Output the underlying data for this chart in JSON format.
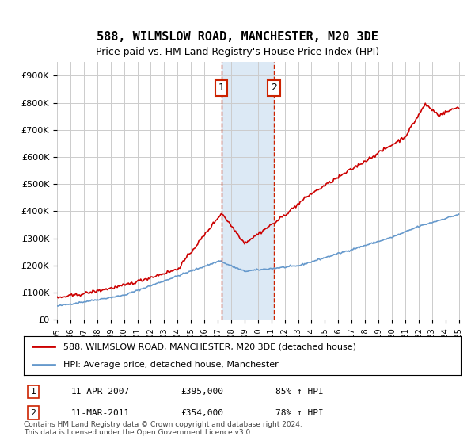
{
  "title": "588, WILMSLOW ROAD, MANCHESTER, M20 3DE",
  "subtitle": "Price paid vs. HM Land Registry's House Price Index (HPI)",
  "ylim": [
    0,
    950000
  ],
  "yticks": [
    0,
    100000,
    200000,
    300000,
    400000,
    500000,
    600000,
    700000,
    800000,
    900000
  ],
  "xstart_year": 1995,
  "xend_year": 2025,
  "sale1_date": 2007.27,
  "sale1_price": 395000,
  "sale1_label": "1",
  "sale1_hpi_pct": "85% ↑ HPI",
  "sale1_date_str": "11-APR-2007",
  "sale2_date": 2011.19,
  "sale2_price": 354000,
  "sale2_label": "2",
  "sale2_hpi_pct": "78% ↑ HPI",
  "sale2_date_str": "11-MAR-2011",
  "red_line_color": "#cc0000",
  "blue_line_color": "#6699cc",
  "shade_color": "#dce9f5",
  "marker_box_color": "#cc2200",
  "grid_color": "#cccccc",
  "legend_label_red": "588, WILMSLOW ROAD, MANCHESTER, M20 3DE (detached house)",
  "legend_label_blue": "HPI: Average price, detached house, Manchester",
  "footnote": "Contains HM Land Registry data © Crown copyright and database right 2024.\nThis data is licensed under the Open Government Licence v3.0.",
  "background_color": "#ffffff"
}
